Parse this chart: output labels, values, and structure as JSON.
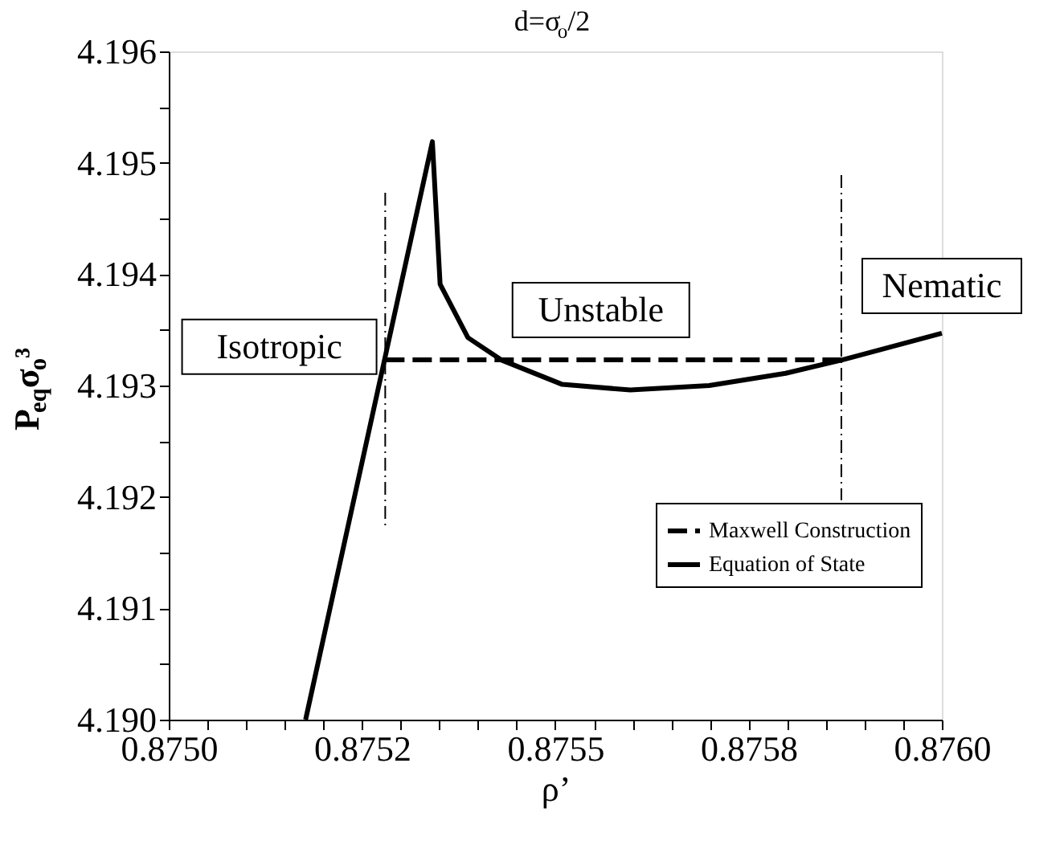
{
  "chart_data": {
    "type": "line",
    "title": "d=σ$_{o}$/2",
    "xlabel": "ρ’",
    "ylabel": "P$_{eq}$σ$_{o}$³",
    "xlim": [
      0.875,
      0.876
    ],
    "ylim": [
      4.19,
      4.196
    ],
    "xticks": [
      {
        "value": 0.875,
        "label": "0.8750"
      },
      {
        "value": 0.87505,
        "label": null
      },
      {
        "value": 0.8751,
        "label": null
      },
      {
        "value": 0.87515,
        "label": null
      },
      {
        "value": 0.8752,
        "label": null
      },
      {
        "value": 0.87525,
        "label": "0.8752"
      },
      {
        "value": 0.8753,
        "label": null
      },
      {
        "value": 0.87535,
        "label": null
      },
      {
        "value": 0.8754,
        "label": null
      },
      {
        "value": 0.87545,
        "label": null
      },
      0.8755,
      {
        "value": 0.87555,
        "label": null
      },
      {
        "value": 0.8756,
        "label": null
      },
      {
        "value": 0.87565,
        "label": null
      },
      {
        "value": 0.8757,
        "label": null
      },
      {
        "value": 0.87575,
        "label": "0.8758"
      },
      {
        "value": 0.8758,
        "label": null
      },
      {
        "value": 0.87585,
        "label": null
      },
      {
        "value": 0.8759,
        "label": null
      },
      {
        "value": 0.87595,
        "label": null
      },
      {
        "value": 0.876,
        "label": "0.8760"
      }
    ],
    "yticks": [
      {
        "value": 4.19,
        "label": "4.190"
      },
      {
        "value": 4.1905,
        "label": null
      },
      4.191,
      {
        "value": 4.1915,
        "label": null
      },
      4.192,
      {
        "value": 4.1925,
        "label": null
      },
      4.193,
      {
        "value": 4.1935,
        "label": null
      },
      4.194,
      {
        "value": 4.1945,
        "label": null
      },
      4.195,
      {
        "value": 4.1955,
        "label": null
      },
      4.196
    ],
    "series": [
      {
        "name": "Maxwell Construction",
        "color": "#000000",
        "line_style": "dashed",
        "x": [
          0.87528,
          0.87587
        ],
        "values": [
          4.19323,
          4.19323
        ]
      },
      {
        "name": "Equation of State",
        "color": "#000000",
        "line_style": "solid",
        "x": [
          0.875177,
          0.875341,
          0.875351,
          0.875387,
          0.87543,
          0.875509,
          0.875597,
          0.875699,
          0.875798,
          0.875871,
          0.876
        ],
        "values": [
          4.19,
          4.19519,
          4.19391,
          4.19343,
          4.19323,
          4.19301,
          4.19296,
          4.193,
          4.19311,
          4.19323,
          4.19347
        ]
      },
      {
        "color": "#000000",
        "line_style": "dotted",
        "x": [
          0.87528,
          0.87528
        ],
        "values": [
          4.19473,
          4.19171
        ]
      },
      {
        "color": "#000000",
        "line_style": "dotted",
        "x": [
          0.87587,
          0.87587
        ],
        "values": [
          4.19489,
          4.19197
        ]
      }
    ],
    "annotations": [
      "Isotropic",
      "Unstable",
      "Nematic"
    ],
    "legend": "bottom right",
    "grid": false,
    "marker": "none"
  }
}
